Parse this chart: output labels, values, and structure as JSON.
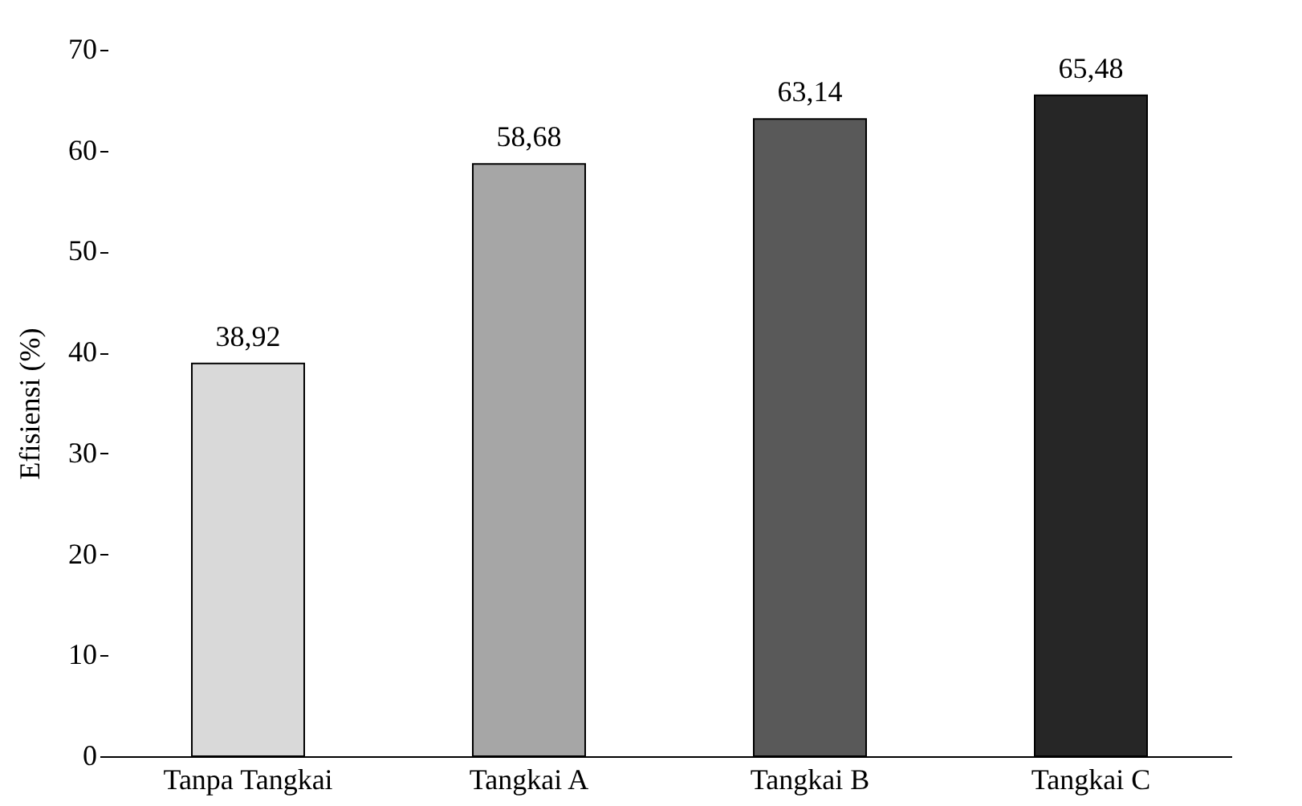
{
  "chart_data": {
    "type": "bar",
    "ylabel": "Efisiensi  (%)",
    "categories": [
      "Tanpa Tangkai",
      "Tangkai A",
      "Tangkai B",
      "Tangkai C"
    ],
    "values": [
      38.92,
      58.68,
      63.14,
      65.48
    ],
    "colors": [
      "#d9d9d9",
      "#a6a6a6",
      "#595959",
      "#262626"
    ],
    "value_labels": [
      "38,92",
      "58,68",
      "63,14",
      "65,48"
    ],
    "ylim": [
      0,
      70
    ],
    "yticks": [
      0,
      10,
      20,
      30,
      40,
      50,
      60,
      70
    ],
    "grid": false
  }
}
